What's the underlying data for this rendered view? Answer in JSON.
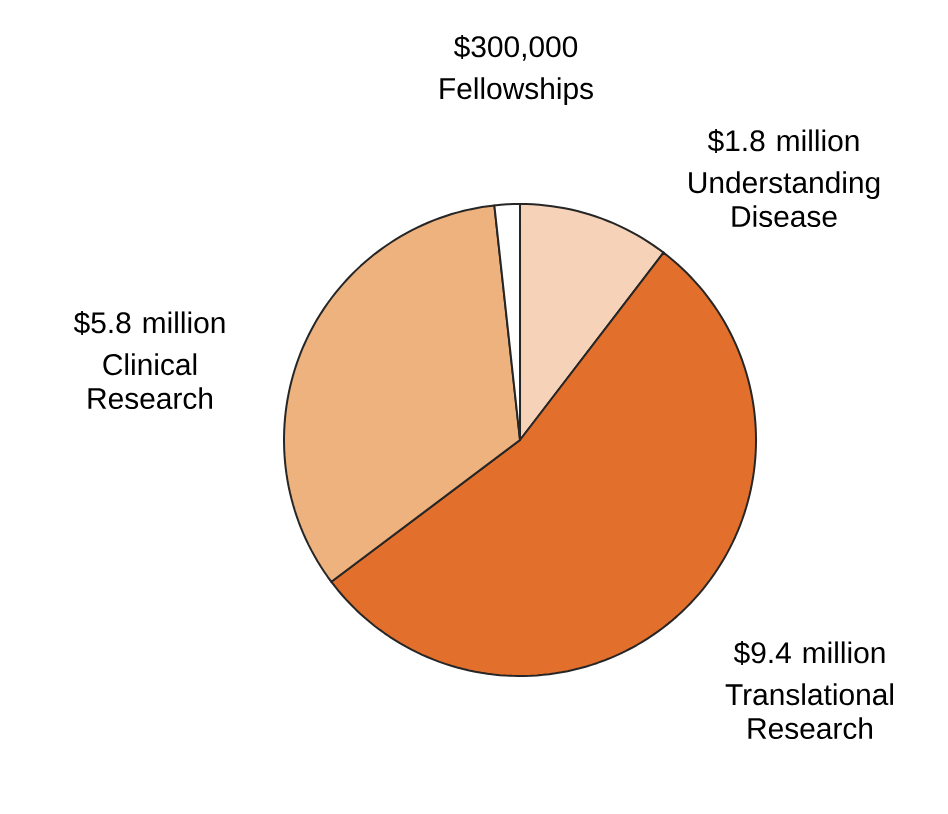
{
  "chart_data": {
    "type": "pie",
    "categories": [
      "Understanding Disease",
      "Translational Research",
      "Clinical Research",
      "Fellowships"
    ],
    "values": [
      1800000,
      9400000,
      5800000,
      300000
    ],
    "value_labels": [
      "$1.8 million",
      "$9.4 million",
      "$5.8 million",
      "$300,000"
    ],
    "colors": [
      "#f6d2b8",
      "#e2702c",
      "#eeb27e",
      "#ffffff"
    ]
  }
}
